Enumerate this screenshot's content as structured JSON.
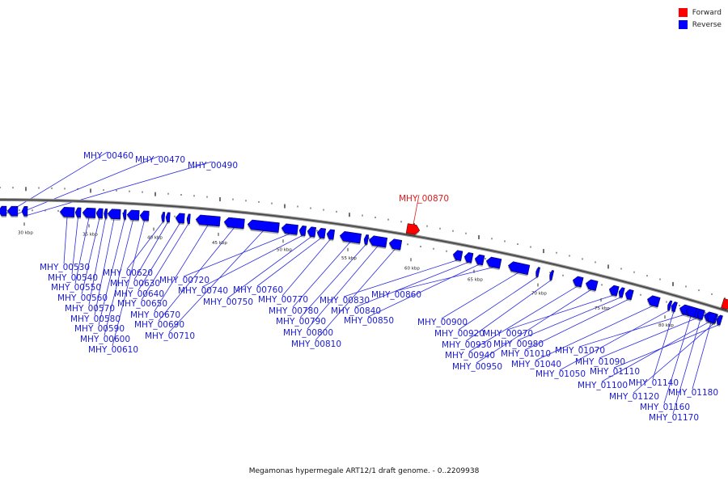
{
  "legend": {
    "forward_label": "Forward",
    "reverse_label": "Reverse",
    "forward_color": "#ff0000",
    "reverse_color": "#0000ff"
  },
  "caption": "Megamonas hypermegale ART12/1 draft genome. - 0..2209938",
  "scale_labels": [
    "30 kbp",
    "35 kbp",
    "40 kbp",
    "45 kbp",
    "50 kbp",
    "55 kbp",
    "60 kbp",
    "65 kbp",
    "70 kbp",
    "75 kbp",
    "80 kbp"
  ],
  "genes_reverse": [
    "MHY_00460",
    "MHY_00470",
    "MHY_00490",
    "MHY_00530",
    "MHY_00540",
    "MHY_00550",
    "MHY_00560",
    "MHY_00570",
    "MHY_00580",
    "MHY_00590",
    "MHY_00600",
    "MHY_00610",
    "MHY_00620",
    "MHY_00630",
    "MHY_00640",
    "MHY_00650",
    "MHY_00670",
    "MHY_00690",
    "MHY_00710",
    "MHY_00720",
    "MHY_00740",
    "MHY_00750",
    "MHY_00760",
    "MHY_00770",
    "MHY_00780",
    "MHY_00790",
    "MHY_00800",
    "MHY_00810",
    "MHY_00830",
    "MHY_00840",
    "MHY_00850",
    "MHY_00860",
    "MHY_00900",
    "MHY_00920",
    "MHY_00930",
    "MHY_00940",
    "MHY_00950",
    "MHY_00970",
    "MHY_00980",
    "MHY_01010",
    "MHY_01040",
    "MHY_01050",
    "MHY_01070",
    "MHY_01090",
    "MHY_01100",
    "MHY_01110",
    "MHY_01120",
    "MHY_01140",
    "MHY_01160",
    "MHY_01170",
    "MHY_01180"
  ],
  "genes_forward": [
    "MHY_00870"
  ]
}
